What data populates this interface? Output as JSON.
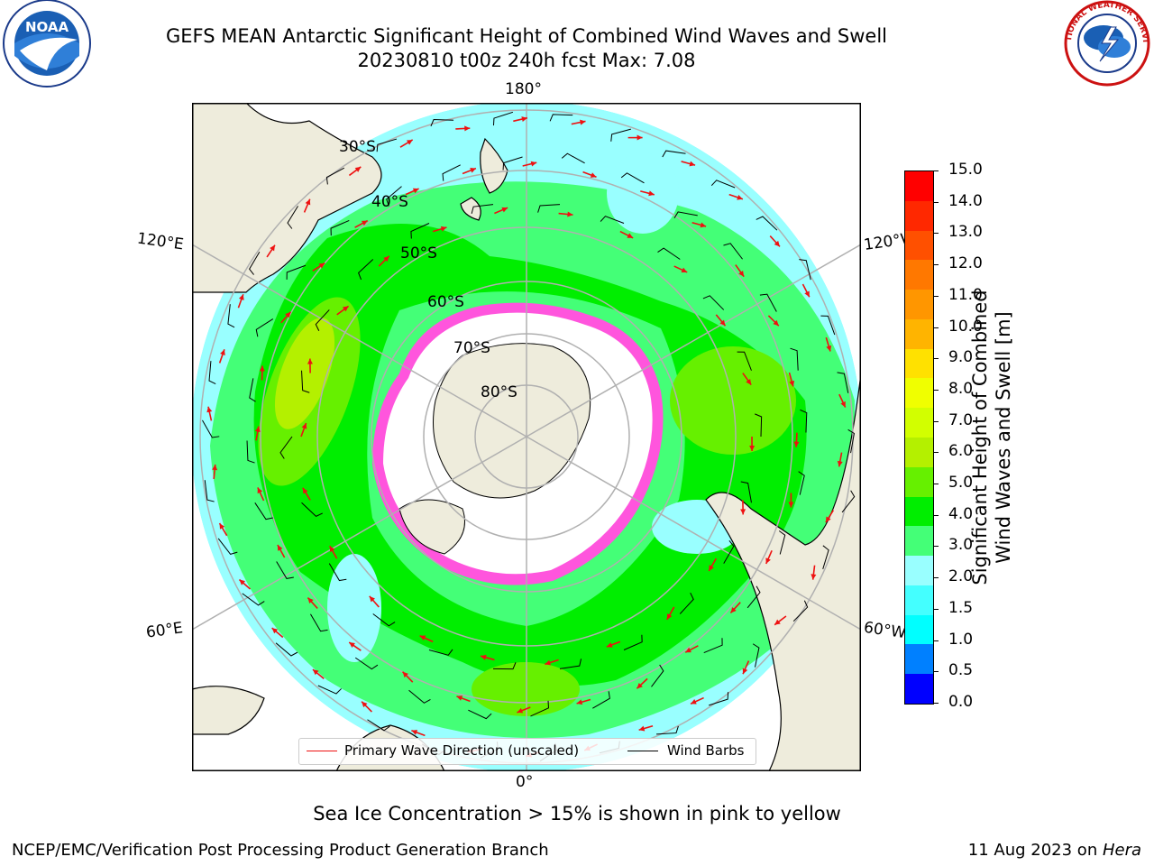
{
  "header": {
    "title_line1": "GEFS MEAN Antarctic Significant Height of Combined Wind Waves and Swell",
    "title_line2": "20230810 t00z 240h fcst   Max: 7.08"
  },
  "logos": {
    "noaa_text": "NOAA",
    "nws_text": "NATIONAL WEATHER SERVICE"
  },
  "map": {
    "projection": "south polar stereographic",
    "longitude_labels": {
      "top": "180°",
      "bottom": "0°",
      "left_upper": "120°E",
      "left_lower": "60°E",
      "right_upper": "120°W",
      "right_lower": "60°W"
    },
    "latitude_labels": [
      "30°S",
      "40°S",
      "50°S",
      "60°S",
      "70°S",
      "80°S"
    ],
    "colors": {
      "land": "#eeecdc",
      "ice_sheet": "#ffffff",
      "sea_ice": "#ff55dd",
      "arrow": "#ee1111",
      "barb": "#000000",
      "grid": "#b0b0b0"
    }
  },
  "legend": {
    "wave_direction_label": "Primary Wave Direction (unscaled)",
    "wind_barbs_label": "Wind Barbs"
  },
  "colorbar": {
    "label_line1": "Significant Height of Combined",
    "label_line2": "Wind Waves and Swell [m]",
    "ticks": [
      "15.0",
      "14.0",
      "13.0",
      "12.0",
      "11.0",
      "10.0",
      "9.0",
      "8.0",
      "7.0",
      "6.0",
      "5.0",
      "4.0",
      "3.0",
      "2.0",
      "1.5",
      "1.0",
      "0.5",
      "0.0"
    ],
    "colors_top_to_bottom": [
      "#ff0000",
      "#ff2800",
      "#ff5000",
      "#ff7800",
      "#ff9600",
      "#ffb400",
      "#ffe100",
      "#f0ff00",
      "#d2ff00",
      "#b4f000",
      "#66f000",
      "#00ee00",
      "#44ff77",
      "#99ffff",
      "#44ffff",
      "#00ffff",
      "#0080ff",
      "#0000ff"
    ]
  },
  "footer": {
    "note": "Sea Ice Concentration > 15% is shown in pink to yellow",
    "credit": "NCEP/EMC/Verification Post Processing Product Generation Branch",
    "date": "11 Aug 2023 on ",
    "machine": "Hera"
  }
}
